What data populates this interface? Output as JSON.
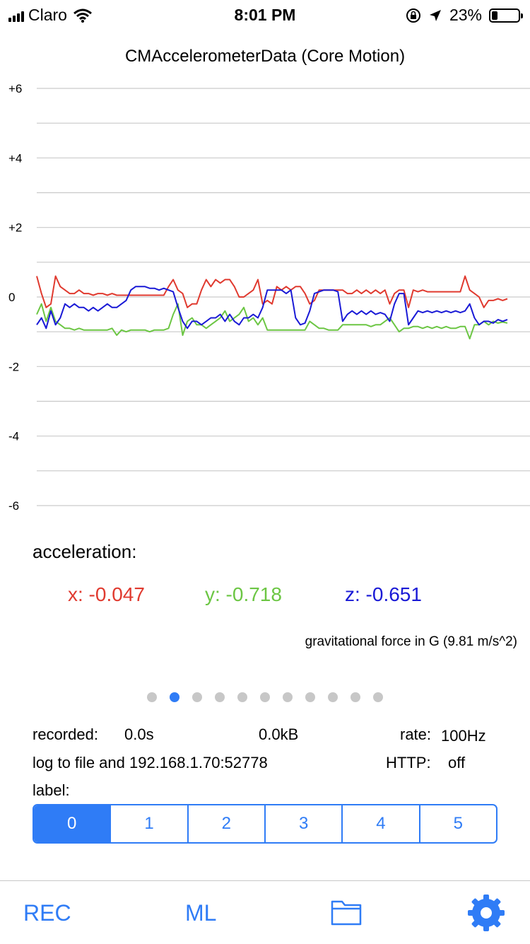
{
  "status_bar": {
    "carrier": "Claro",
    "time": "8:01 PM",
    "battery": "23%",
    "battery_level": 0.23
  },
  "chart_data": {
    "type": "line",
    "title": "CMAccelerometerData (Core Motion)",
    "ylim": [
      -6,
      6
    ],
    "yticks": [
      6,
      4,
      2,
      0,
      -2,
      -4,
      -6
    ],
    "ytick_labels": [
      "+6",
      "+4",
      "+2",
      "0",
      "-2",
      "-4",
      "-6"
    ],
    "grid_values": [
      6,
      5,
      4,
      3,
      2,
      1,
      0,
      -1,
      -2,
      -3,
      -4,
      -5,
      -6
    ],
    "xlim": [
      0,
      100
    ],
    "series": [
      {
        "color": "#e03a2f",
        "points": [
          [
            0,
            0.6
          ],
          [
            1,
            0.1
          ],
          [
            2,
            -0.3
          ],
          [
            3,
            -0.2
          ],
          [
            4,
            0.6
          ],
          [
            5,
            0.3
          ],
          [
            6,
            0.2
          ],
          [
            7,
            0.1
          ],
          [
            8,
            0.1
          ],
          [
            9,
            0.2
          ],
          [
            10,
            0.1
          ],
          [
            11,
            0.1
          ],
          [
            12,
            0.05
          ],
          [
            13,
            0.1
          ],
          [
            14,
            0.1
          ],
          [
            15,
            0.05
          ],
          [
            16,
            0.1
          ],
          [
            17,
            0.05
          ],
          [
            18,
            0.05
          ],
          [
            19,
            0.05
          ],
          [
            20,
            0.05
          ],
          [
            21,
            0.05
          ],
          [
            22,
            0.05
          ],
          [
            23,
            0.05
          ],
          [
            24,
            0.05
          ],
          [
            25,
            0.05
          ],
          [
            26,
            0.05
          ],
          [
            27,
            0.05
          ],
          [
            28,
            0.3
          ],
          [
            29,
            0.5
          ],
          [
            30,
            0.2
          ],
          [
            31,
            0.1
          ],
          [
            32,
            -0.3
          ],
          [
            33,
            -0.2
          ],
          [
            34,
            -0.2
          ],
          [
            35,
            0.2
          ],
          [
            36,
            0.5
          ],
          [
            37,
            0.3
          ],
          [
            38,
            0.5
          ],
          [
            39,
            0.4
          ],
          [
            40,
            0.5
          ],
          [
            41,
            0.5
          ],
          [
            42,
            0.3
          ],
          [
            43,
            0.0
          ],
          [
            44,
            0.0
          ],
          [
            45,
            0.1
          ],
          [
            46,
            0.2
          ],
          [
            47,
            0.5
          ],
          [
            48,
            -0.2
          ],
          [
            49,
            -0.1
          ],
          [
            50,
            -0.2
          ],
          [
            51,
            0.3
          ],
          [
            52,
            0.2
          ],
          [
            53,
            0.3
          ],
          [
            54,
            0.2
          ],
          [
            55,
            0.3
          ],
          [
            56,
            0.3
          ],
          [
            57,
            0.1
          ],
          [
            58,
            -0.2
          ],
          [
            59,
            -0.1
          ],
          [
            60,
            0.2
          ],
          [
            61,
            0.2
          ],
          [
            62,
            0.2
          ],
          [
            63,
            0.2
          ],
          [
            64,
            0.2
          ],
          [
            65,
            0.2
          ],
          [
            66,
            0.1
          ],
          [
            67,
            0.1
          ],
          [
            68,
            0.2
          ],
          [
            69,
            0.1
          ],
          [
            70,
            0.2
          ],
          [
            71,
            0.1
          ],
          [
            72,
            0.2
          ],
          [
            73,
            0.1
          ],
          [
            74,
            0.2
          ],
          [
            75,
            -0.2
          ],
          [
            76,
            0.1
          ],
          [
            77,
            0.2
          ],
          [
            78,
            0.2
          ],
          [
            79,
            -0.3
          ],
          [
            80,
            0.2
          ],
          [
            81,
            0.15
          ],
          [
            82,
            0.2
          ],
          [
            83,
            0.15
          ],
          [
            84,
            0.15
          ],
          [
            85,
            0.15
          ],
          [
            86,
            0.15
          ],
          [
            87,
            0.15
          ],
          [
            88,
            0.15
          ],
          [
            89,
            0.15
          ],
          [
            90,
            0.15
          ],
          [
            91,
            0.6
          ],
          [
            92,
            0.2
          ],
          [
            93,
            0.1
          ],
          [
            94,
            0.0
          ],
          [
            95,
            -0.3
          ],
          [
            96,
            -0.1
          ],
          [
            97,
            -0.1
          ],
          [
            98,
            -0.05
          ],
          [
            99,
            -0.1
          ],
          [
            100,
            -0.05
          ]
        ]
      },
      {
        "color": "#6cc644",
        "points": [
          [
            0,
            -0.5
          ],
          [
            1,
            -0.2
          ],
          [
            2,
            -0.7
          ],
          [
            3,
            -0.3
          ],
          [
            4,
            -0.7
          ],
          [
            5,
            -0.8
          ],
          [
            6,
            -0.9
          ],
          [
            7,
            -0.9
          ],
          [
            8,
            -0.95
          ],
          [
            9,
            -0.9
          ],
          [
            10,
            -0.95
          ],
          [
            11,
            -0.95
          ],
          [
            12,
            -0.95
          ],
          [
            13,
            -0.95
          ],
          [
            14,
            -0.95
          ],
          [
            15,
            -0.95
          ],
          [
            16,
            -0.9
          ],
          [
            17,
            -1.1
          ],
          [
            18,
            -0.95
          ],
          [
            19,
            -1.0
          ],
          [
            20,
            -0.95
          ],
          [
            21,
            -0.95
          ],
          [
            22,
            -0.95
          ],
          [
            23,
            -0.95
          ],
          [
            24,
            -1.0
          ],
          [
            25,
            -0.95
          ],
          [
            26,
            -0.95
          ],
          [
            27,
            -0.95
          ],
          [
            28,
            -0.9
          ],
          [
            29,
            -0.5
          ],
          [
            30,
            -0.2
          ],
          [
            31,
            -1.1
          ],
          [
            32,
            -0.7
          ],
          [
            33,
            -0.6
          ],
          [
            34,
            -0.8
          ],
          [
            35,
            -0.8
          ],
          [
            36,
            -0.9
          ],
          [
            37,
            -0.8
          ],
          [
            38,
            -0.7
          ],
          [
            39,
            -0.6
          ],
          [
            40,
            -0.4
          ],
          [
            41,
            -0.7
          ],
          [
            42,
            -0.6
          ],
          [
            43,
            -0.5
          ],
          [
            44,
            -0.3
          ],
          [
            45,
            -0.7
          ],
          [
            46,
            -0.6
          ],
          [
            47,
            -0.8
          ],
          [
            48,
            -0.6
          ],
          [
            49,
            -0.95
          ],
          [
            50,
            -0.95
          ],
          [
            51,
            -0.95
          ],
          [
            52,
            -0.95
          ],
          [
            53,
            -0.95
          ],
          [
            54,
            -0.95
          ],
          [
            55,
            -0.95
          ],
          [
            56,
            -0.95
          ],
          [
            57,
            -0.95
          ],
          [
            58,
            -0.7
          ],
          [
            59,
            -0.8
          ],
          [
            60,
            -0.9
          ],
          [
            61,
            -0.9
          ],
          [
            62,
            -0.95
          ],
          [
            63,
            -0.95
          ],
          [
            64,
            -0.95
          ],
          [
            65,
            -0.8
          ],
          [
            66,
            -0.8
          ],
          [
            67,
            -0.8
          ],
          [
            68,
            -0.8
          ],
          [
            69,
            -0.8
          ],
          [
            70,
            -0.8
          ],
          [
            71,
            -0.85
          ],
          [
            72,
            -0.8
          ],
          [
            73,
            -0.8
          ],
          [
            74,
            -0.7
          ],
          [
            75,
            -0.6
          ],
          [
            76,
            -0.8
          ],
          [
            77,
            -1.0
          ],
          [
            78,
            -0.9
          ],
          [
            79,
            -0.9
          ],
          [
            80,
            -0.85
          ],
          [
            81,
            -0.85
          ],
          [
            82,
            -0.9
          ],
          [
            83,
            -0.85
          ],
          [
            84,
            -0.9
          ],
          [
            85,
            -0.85
          ],
          [
            86,
            -0.9
          ],
          [
            87,
            -0.85
          ],
          [
            88,
            -0.9
          ],
          [
            89,
            -0.9
          ],
          [
            90,
            -0.85
          ],
          [
            91,
            -0.85
          ],
          [
            92,
            -1.2
          ],
          [
            93,
            -0.8
          ],
          [
            94,
            -0.8
          ],
          [
            95,
            -0.7
          ],
          [
            96,
            -0.8
          ],
          [
            97,
            -0.7
          ],
          [
            98,
            -0.75
          ],
          [
            99,
            -0.72
          ],
          [
            100,
            -0.75
          ]
        ]
      },
      {
        "color": "#1a1ad6",
        "points": [
          [
            0,
            -0.8
          ],
          [
            1,
            -0.6
          ],
          [
            2,
            -0.9
          ],
          [
            3,
            -0.4
          ],
          [
            4,
            -0.8
          ],
          [
            5,
            -0.6
          ],
          [
            6,
            -0.2
          ],
          [
            7,
            -0.3
          ],
          [
            8,
            -0.2
          ],
          [
            9,
            -0.3
          ],
          [
            10,
            -0.3
          ],
          [
            11,
            -0.4
          ],
          [
            12,
            -0.3
          ],
          [
            13,
            -0.4
          ],
          [
            14,
            -0.3
          ],
          [
            15,
            -0.2
          ],
          [
            16,
            -0.3
          ],
          [
            17,
            -0.3
          ],
          [
            18,
            -0.2
          ],
          [
            19,
            -0.1
          ],
          [
            20,
            0.2
          ],
          [
            21,
            0.3
          ],
          [
            22,
            0.3
          ],
          [
            23,
            0.3
          ],
          [
            24,
            0.25
          ],
          [
            25,
            0.25
          ],
          [
            26,
            0.2
          ],
          [
            27,
            0.25
          ],
          [
            28,
            0.2
          ],
          [
            29,
            0.15
          ],
          [
            30,
            -0.3
          ],
          [
            31,
            -0.7
          ],
          [
            32,
            -0.9
          ],
          [
            33,
            -0.7
          ],
          [
            34,
            -0.7
          ],
          [
            35,
            -0.8
          ],
          [
            36,
            -0.7
          ],
          [
            37,
            -0.6
          ],
          [
            38,
            -0.6
          ],
          [
            39,
            -0.5
          ],
          [
            40,
            -0.7
          ],
          [
            41,
            -0.5
          ],
          [
            42,
            -0.7
          ],
          [
            43,
            -0.8
          ],
          [
            44,
            -0.6
          ],
          [
            45,
            -0.6
          ],
          [
            46,
            -0.5
          ],
          [
            47,
            -0.6
          ],
          [
            48,
            -0.3
          ],
          [
            49,
            0.2
          ],
          [
            50,
            0.2
          ],
          [
            51,
            0.2
          ],
          [
            52,
            0.2
          ],
          [
            53,
            0.1
          ],
          [
            54,
            0.2
          ],
          [
            55,
            -0.6
          ],
          [
            56,
            -0.8
          ],
          [
            57,
            -0.75
          ],
          [
            58,
            -0.4
          ],
          [
            59,
            0.1
          ],
          [
            60,
            0.15
          ],
          [
            61,
            0.2
          ],
          [
            62,
            0.2
          ],
          [
            63,
            0.2
          ],
          [
            64,
            0.15
          ],
          [
            65,
            -0.7
          ],
          [
            66,
            -0.5
          ],
          [
            67,
            -0.4
          ],
          [
            68,
            -0.5
          ],
          [
            69,
            -0.4
          ],
          [
            70,
            -0.5
          ],
          [
            71,
            -0.4
          ],
          [
            72,
            -0.5
          ],
          [
            73,
            -0.45
          ],
          [
            74,
            -0.5
          ],
          [
            75,
            -0.7
          ],
          [
            76,
            -0.2
          ],
          [
            77,
            0.1
          ],
          [
            78,
            0.1
          ],
          [
            79,
            -0.8
          ],
          [
            80,
            -0.6
          ],
          [
            81,
            -0.4
          ],
          [
            82,
            -0.45
          ],
          [
            83,
            -0.4
          ],
          [
            84,
            -0.45
          ],
          [
            85,
            -0.4
          ],
          [
            86,
            -0.45
          ],
          [
            87,
            -0.4
          ],
          [
            88,
            -0.45
          ],
          [
            89,
            -0.4
          ],
          [
            90,
            -0.45
          ],
          [
            91,
            -0.4
          ],
          [
            92,
            -0.2
          ],
          [
            93,
            -0.6
          ],
          [
            94,
            -0.8
          ],
          [
            95,
            -0.7
          ],
          [
            96,
            -0.7
          ],
          [
            97,
            -0.75
          ],
          [
            98,
            -0.65
          ],
          [
            99,
            -0.7
          ],
          [
            100,
            -0.65
          ]
        ]
      }
    ]
  },
  "acceleration": {
    "label": "acceleration:",
    "x": "x: -0.047",
    "y": "y: -0.718",
    "z": "z: -0.651",
    "note": "gravitational force in G (9.81 m/s^2)"
  },
  "pager": {
    "count": 11,
    "active_index": 1
  },
  "recording": {
    "recorded_label": "recorded:",
    "recorded_value": "0.0s",
    "size": "0.0kB",
    "rate_label": "rate:",
    "rate_value": "100Hz",
    "log_target": "log to file and 192.168.1.70:52778",
    "http_label": "HTTP:",
    "http_value": "off",
    "label_caption": "label:"
  },
  "segments": {
    "items": [
      "0",
      "1",
      "2",
      "3",
      "4",
      "5"
    ],
    "selected_index": 0
  },
  "tabbar": {
    "rec": "REC",
    "ml": "ML",
    "files_icon": "folder-icon",
    "settings_icon": "gear-icon"
  },
  "colors": {
    "accent": "#2f7cf6",
    "x": "#e03a2f",
    "y": "#6cc644",
    "z": "#1a1ad6"
  }
}
